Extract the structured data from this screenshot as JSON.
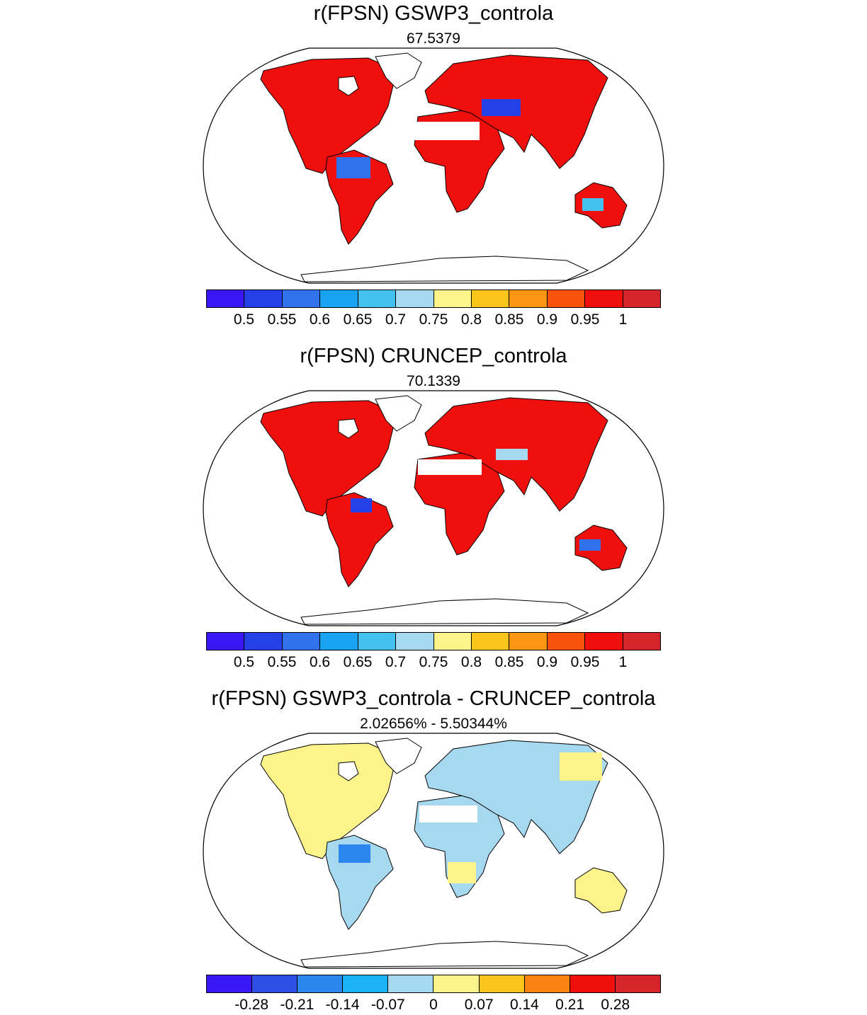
{
  "panels": [
    {
      "title": "r(FPSN) GSWP3_controla",
      "subtitle": "67.5379",
      "colors": [
        "#3a18f5",
        "#2540e6",
        "#2f72ea",
        "#1aa3f2",
        "#45c1f0",
        "#a6d8ef",
        "#fcf48a",
        "#fcc51b",
        "#fa9612",
        "#f9520b",
        "#ef0f0d",
        "#d5242a"
      ],
      "labels": [
        "0.5",
        "0.55",
        "0.6",
        "0.65",
        "0.7",
        "0.75",
        "0.8",
        "0.85",
        "0.9",
        "0.95",
        "1"
      ]
    },
    {
      "title": "r(FPSN) CRUNCEP_controla",
      "subtitle": "70.1339",
      "colors": [
        "#3a18f5",
        "#2540e6",
        "#2f72ea",
        "#1aa3f2",
        "#45c1f0",
        "#a6d8ef",
        "#fcf48a",
        "#fcc51b",
        "#fa9612",
        "#f9520b",
        "#ef0f0d",
        "#d5242a"
      ],
      "labels": [
        "0.5",
        "0.55",
        "0.6",
        "0.65",
        "0.7",
        "0.75",
        "0.8",
        "0.85",
        "0.9",
        "0.95",
        "1"
      ]
    },
    {
      "title": "r(FPSN) GSWP3_controla - CRUNCEP_controla",
      "subtitle": "2.02656% - 5.50344%",
      "colors": [
        "#3a18f5",
        "#2f4ee6",
        "#2b86ee",
        "#1ab3f4",
        "#a6d8ef",
        "#fcf48a",
        "#fcc51b",
        "#fa8312",
        "#ef0f0d",
        "#d5242a"
      ],
      "labels": [
        "-0.28",
        "-0.21",
        "-0.14",
        "-0.07",
        "0",
        "0.07",
        "0.14",
        "0.21",
        "0.28"
      ]
    }
  ]
}
